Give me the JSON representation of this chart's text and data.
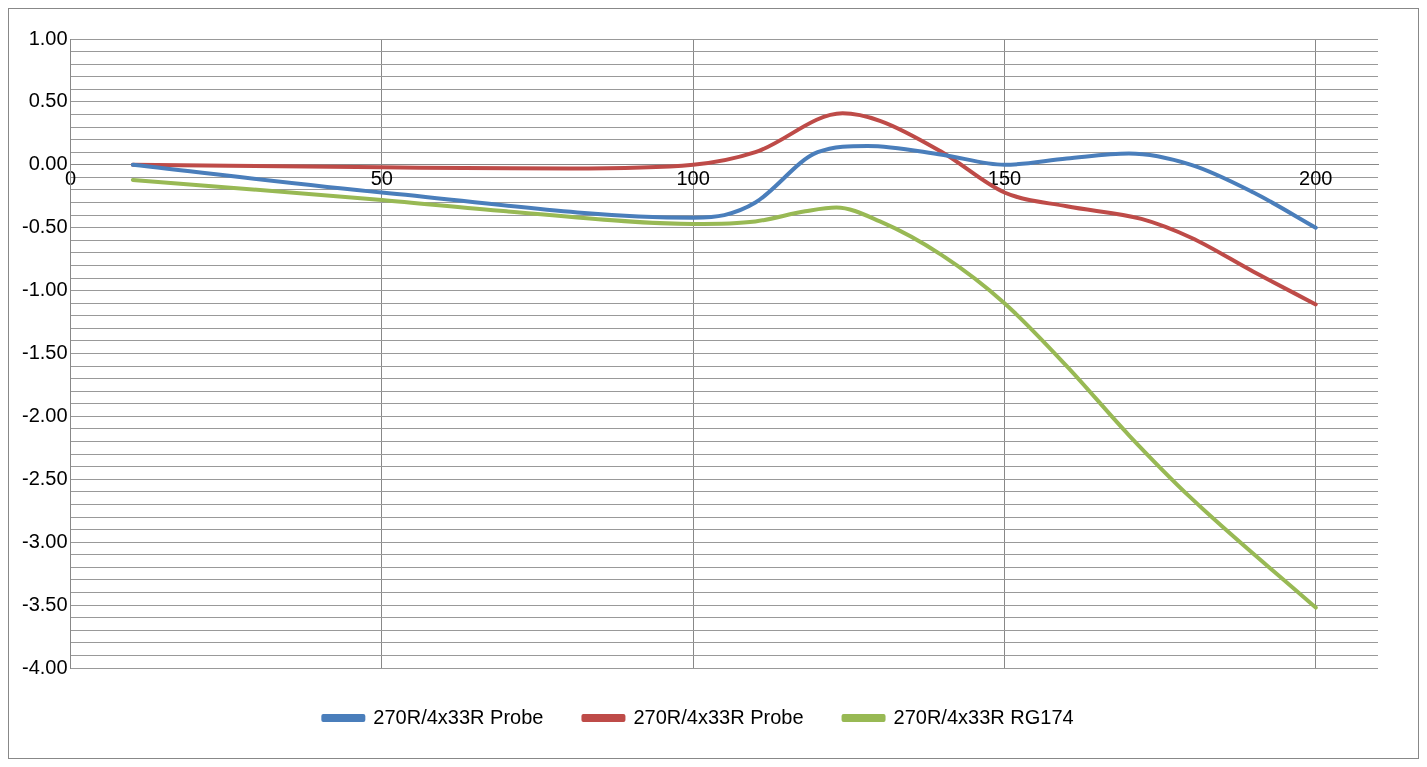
{
  "chart_data": {
    "type": "line",
    "xlim": [
      0,
      210
    ],
    "xticks": [
      0,
      50,
      100,
      150,
      200
    ],
    "ylim": [
      -4,
      1
    ],
    "yticks": [
      {
        "value": 1,
        "label": "1.00"
      },
      {
        "value": 0.9,
        "label": null
      },
      {
        "value": 0.8,
        "label": null
      },
      {
        "value": 0.7,
        "label": null
      },
      {
        "value": 0.6,
        "label": null
      },
      {
        "value": 0.5,
        "label": "0.50"
      },
      {
        "value": 0.4,
        "label": null
      },
      {
        "value": 0.3,
        "label": null
      },
      {
        "value": 0.2,
        "label": null
      },
      {
        "value": 0.1,
        "label": null
      },
      {
        "value": 0,
        "label": "0.00"
      },
      {
        "value": -0.1,
        "label": null
      },
      {
        "value": -0.2,
        "label": null
      },
      {
        "value": -0.3,
        "label": null
      },
      {
        "value": -0.4,
        "label": null
      },
      {
        "value": -0.5,
        "label": "-0.50"
      },
      {
        "value": -0.6,
        "label": null
      },
      {
        "value": -0.7,
        "label": null
      },
      {
        "value": -0.8,
        "label": null
      },
      {
        "value": -0.9,
        "label": null
      },
      {
        "value": -1,
        "label": "-1.00"
      },
      {
        "value": -1.1,
        "label": null
      },
      {
        "value": -1.2,
        "label": null
      },
      {
        "value": -1.3,
        "label": null
      },
      {
        "value": -1.4,
        "label": null
      },
      {
        "value": -1.5,
        "label": "-1.50"
      },
      {
        "value": -1.6,
        "label": null
      },
      {
        "value": -1.7,
        "label": null
      },
      {
        "value": -1.8,
        "label": null
      },
      {
        "value": -1.9,
        "label": null
      },
      {
        "value": -2,
        "label": "-2.00"
      },
      {
        "value": -2.1,
        "label": null
      },
      {
        "value": -2.2,
        "label": null
      },
      {
        "value": -2.3,
        "label": null
      },
      {
        "value": -2.4,
        "label": null
      },
      {
        "value": -2.5,
        "label": "-2.50"
      },
      {
        "value": -2.6,
        "label": null
      },
      {
        "value": -2.7,
        "label": null
      },
      {
        "value": -2.8,
        "label": null
      },
      {
        "value": -2.9,
        "label": null
      },
      {
        "value": -3,
        "label": "-3.00"
      },
      {
        "value": -3.1,
        "label": null
      },
      {
        "value": -3.2,
        "label": null
      },
      {
        "value": -3.3,
        "label": null
      },
      {
        "value": -3.4,
        "label": null
      },
      {
        "value": -3.5,
        "label": "-3.50"
      },
      {
        "value": -3.6,
        "label": null
      },
      {
        "value": -3.7,
        "label": null
      },
      {
        "value": -3.8,
        "label": null
      },
      {
        "value": -3.9,
        "label": null
      },
      {
        "value": -4,
        "label": "-4.00"
      }
    ],
    "grid": true,
    "legend": "bottom",
    "marker": "none",
    "line_style": "solid",
    "series": [
      {
        "name": "270R/4x33R Probe",
        "color": "#4a7ebb",
        "x": [
          10,
          50,
          100,
          105,
          110,
          120,
          128,
          140,
          150,
          160,
          170,
          180,
          190,
          200
        ],
        "values": [
          0,
          -0.22,
          -0.42,
          -0.4,
          -0.3,
          0.1,
          0.15,
          0.08,
          0,
          0.05,
          0.09,
          0,
          -0.22,
          -0.5
        ]
      },
      {
        "name": "270R/4x33R Probe",
        "color": "#be4b48",
        "x": [
          10,
          50,
          80,
          100,
          110,
          124,
          130,
          140,
          150,
          160,
          172,
          180,
          190,
          200
        ],
        "values": [
          0,
          -0.02,
          -0.03,
          0,
          0.1,
          0.41,
          0.35,
          0.1,
          -0.22,
          -0.33,
          -0.43,
          -0.58,
          -0.85,
          -1.11
        ]
      },
      {
        "name": "270R/4x33R RG174",
        "color": "#98b954",
        "x": [
          10,
          50,
          70,
          100,
          110,
          118,
          123,
          130,
          140,
          150,
          160,
          170,
          180,
          200
        ],
        "values": [
          -0.12,
          -0.28,
          -0.37,
          -0.47,
          -0.45,
          -0.37,
          -0.34,
          -0.45,
          -0.72,
          -1.1,
          -1.6,
          -2.15,
          -2.65,
          -3.52
        ]
      }
    ]
  }
}
